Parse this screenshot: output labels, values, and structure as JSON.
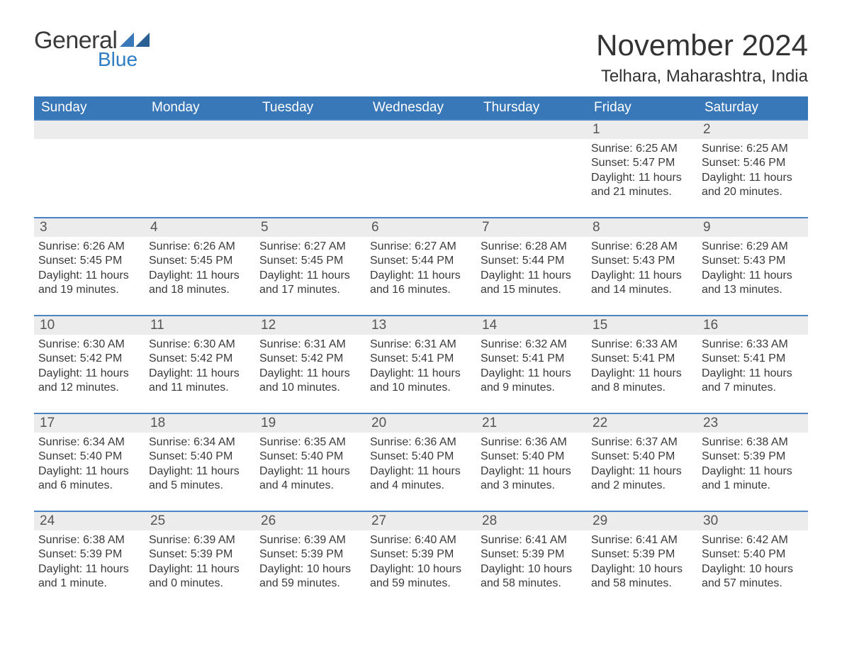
{
  "logo": {
    "text1": "General",
    "text2": "Blue",
    "brand_color": "#2f7dc4"
  },
  "header": {
    "month_title": "November 2024",
    "location": "Telhara, Maharashtra, India"
  },
  "colors": {
    "header_bg": "#3978b8",
    "header_text": "#ffffff",
    "row_divider": "#4a84c2",
    "daynum_bg": "#ececec",
    "text": "#333333",
    "background": "#ffffff"
  },
  "day_labels": [
    "Sunday",
    "Monday",
    "Tuesday",
    "Wednesday",
    "Thursday",
    "Friday",
    "Saturday"
  ],
  "prefixes": {
    "sunrise": "Sunrise: ",
    "sunset": "Sunset: ",
    "daylight": "Daylight: "
  },
  "weeks": [
    [
      null,
      null,
      null,
      null,
      null,
      {
        "n": "1",
        "sunrise": "6:25 AM",
        "sunset": "5:47 PM",
        "daylight": "11 hours and 21 minutes."
      },
      {
        "n": "2",
        "sunrise": "6:25 AM",
        "sunset": "5:46 PM",
        "daylight": "11 hours and 20 minutes."
      }
    ],
    [
      {
        "n": "3",
        "sunrise": "6:26 AM",
        "sunset": "5:45 PM",
        "daylight": "11 hours and 19 minutes."
      },
      {
        "n": "4",
        "sunrise": "6:26 AM",
        "sunset": "5:45 PM",
        "daylight": "11 hours and 18 minutes."
      },
      {
        "n": "5",
        "sunrise": "6:27 AM",
        "sunset": "5:45 PM",
        "daylight": "11 hours and 17 minutes."
      },
      {
        "n": "6",
        "sunrise": "6:27 AM",
        "sunset": "5:44 PM",
        "daylight": "11 hours and 16 minutes."
      },
      {
        "n": "7",
        "sunrise": "6:28 AM",
        "sunset": "5:44 PM",
        "daylight": "11 hours and 15 minutes."
      },
      {
        "n": "8",
        "sunrise": "6:28 AM",
        "sunset": "5:43 PM",
        "daylight": "11 hours and 14 minutes."
      },
      {
        "n": "9",
        "sunrise": "6:29 AM",
        "sunset": "5:43 PM",
        "daylight": "11 hours and 13 minutes."
      }
    ],
    [
      {
        "n": "10",
        "sunrise": "6:30 AM",
        "sunset": "5:42 PM",
        "daylight": "11 hours and 12 minutes."
      },
      {
        "n": "11",
        "sunrise": "6:30 AM",
        "sunset": "5:42 PM",
        "daylight": "11 hours and 11 minutes."
      },
      {
        "n": "12",
        "sunrise": "6:31 AM",
        "sunset": "5:42 PM",
        "daylight": "11 hours and 10 minutes."
      },
      {
        "n": "13",
        "sunrise": "6:31 AM",
        "sunset": "5:41 PM",
        "daylight": "11 hours and 10 minutes."
      },
      {
        "n": "14",
        "sunrise": "6:32 AM",
        "sunset": "5:41 PM",
        "daylight": "11 hours and 9 minutes."
      },
      {
        "n": "15",
        "sunrise": "6:33 AM",
        "sunset": "5:41 PM",
        "daylight": "11 hours and 8 minutes."
      },
      {
        "n": "16",
        "sunrise": "6:33 AM",
        "sunset": "5:41 PM",
        "daylight": "11 hours and 7 minutes."
      }
    ],
    [
      {
        "n": "17",
        "sunrise": "6:34 AM",
        "sunset": "5:40 PM",
        "daylight": "11 hours and 6 minutes."
      },
      {
        "n": "18",
        "sunrise": "6:34 AM",
        "sunset": "5:40 PM",
        "daylight": "11 hours and 5 minutes."
      },
      {
        "n": "19",
        "sunrise": "6:35 AM",
        "sunset": "5:40 PM",
        "daylight": "11 hours and 4 minutes."
      },
      {
        "n": "20",
        "sunrise": "6:36 AM",
        "sunset": "5:40 PM",
        "daylight": "11 hours and 4 minutes."
      },
      {
        "n": "21",
        "sunrise": "6:36 AM",
        "sunset": "5:40 PM",
        "daylight": "11 hours and 3 minutes."
      },
      {
        "n": "22",
        "sunrise": "6:37 AM",
        "sunset": "5:40 PM",
        "daylight": "11 hours and 2 minutes."
      },
      {
        "n": "23",
        "sunrise": "6:38 AM",
        "sunset": "5:39 PM",
        "daylight": "11 hours and 1 minute."
      }
    ],
    [
      {
        "n": "24",
        "sunrise": "6:38 AM",
        "sunset": "5:39 PM",
        "daylight": "11 hours and 1 minute."
      },
      {
        "n": "25",
        "sunrise": "6:39 AM",
        "sunset": "5:39 PM",
        "daylight": "11 hours and 0 minutes."
      },
      {
        "n": "26",
        "sunrise": "6:39 AM",
        "sunset": "5:39 PM",
        "daylight": "10 hours and 59 minutes."
      },
      {
        "n": "27",
        "sunrise": "6:40 AM",
        "sunset": "5:39 PM",
        "daylight": "10 hours and 59 minutes."
      },
      {
        "n": "28",
        "sunrise": "6:41 AM",
        "sunset": "5:39 PM",
        "daylight": "10 hours and 58 minutes."
      },
      {
        "n": "29",
        "sunrise": "6:41 AM",
        "sunset": "5:39 PM",
        "daylight": "10 hours and 58 minutes."
      },
      {
        "n": "30",
        "sunrise": "6:42 AM",
        "sunset": "5:40 PM",
        "daylight": "10 hours and 57 minutes."
      }
    ]
  ]
}
